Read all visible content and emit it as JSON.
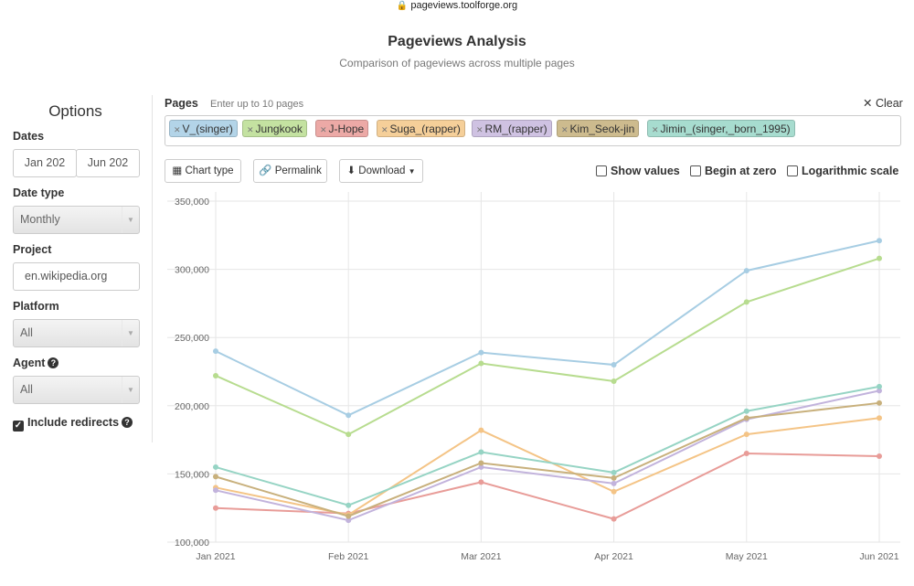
{
  "browser": {
    "url": "pageviews.toolforge.org",
    "lock_icon": "lock-icon"
  },
  "header": {
    "title": "Pageviews Analysis",
    "subtitle": "Comparison of pageviews across multiple pages"
  },
  "sidebar": {
    "title": "Options",
    "dates_label": "Dates",
    "date_start": "Jan 202",
    "date_end": "Jun 202",
    "date_type_label": "Date type",
    "date_type_value": "Monthly",
    "project_label": "Project",
    "project_value": "en.wikipedia.org",
    "platform_label": "Platform",
    "platform_value": "All",
    "agent_label": "Agent",
    "agent_value": "All",
    "redirects_label": "Include redirects",
    "redirects_checked": true
  },
  "pages": {
    "label": "Pages",
    "hint": "Enter up to 10 pages",
    "clear_label": "Clear",
    "tags": [
      {
        "name": "V_(singer)",
        "color": "#b3d4e8"
      },
      {
        "name": "Jungkook",
        "color": "#c4e2a1"
      },
      {
        "name": "J-Hope",
        "color": "#eca9a6"
      },
      {
        "name": "Suga_(rapper)",
        "color": "#f5cf99"
      },
      {
        "name": "RM_(rapper)",
        "color": "#cfc2e2"
      },
      {
        "name": "Kim_Seok-jin",
        "color": "#cdbb8e"
      },
      {
        "name": "Jimin_(singer,_born_1995)",
        "color": "#a7dccf"
      }
    ]
  },
  "toolbar": {
    "chart_type_label": "Chart type",
    "permalink_label": "Permalink",
    "download_label": "Download",
    "show_values_label": "Show values",
    "begin_at_zero_label": "Begin at zero",
    "log_scale_label": "Logarithmic scale"
  },
  "chart_data": {
    "type": "line",
    "categories": [
      "Jan 2021",
      "Feb 2021",
      "Mar 2021",
      "Apr 2021",
      "May 2021",
      "Jun 2021"
    ],
    "ylim": [
      100000,
      350000
    ],
    "yticks": [
      "100,000",
      "150,000",
      "200,000",
      "250,000",
      "300,000",
      "350,000"
    ],
    "grid": true,
    "series": [
      {
        "name": "V_(singer)",
        "color": "#a7cde3",
        "values": [
          240000,
          193000,
          239000,
          230000,
          299000,
          321000
        ]
      },
      {
        "name": "Jungkook",
        "color": "#b7dc8f",
        "values": [
          222000,
          179000,
          231000,
          218000,
          276000,
          308000
        ]
      },
      {
        "name": "J-Hope",
        "color": "#e89c98",
        "values": [
          125000,
          121000,
          144000,
          117000,
          165000,
          163000
        ]
      },
      {
        "name": "Suga_(rapper)",
        "color": "#f4c486",
        "values": [
          140000,
          120000,
          182000,
          137000,
          179000,
          191000
        ]
      },
      {
        "name": "RM_(rapper)",
        "color": "#c2b3dc",
        "values": [
          138000,
          116000,
          155000,
          143000,
          190000,
          211000
        ]
      },
      {
        "name": "Kim_Seok-jin",
        "color": "#c8b07c",
        "values": [
          148000,
          119000,
          158000,
          147000,
          191000,
          202000
        ]
      },
      {
        "name": "Jimin_(singer,_born_1995)",
        "color": "#96d4c4",
        "values": [
          155000,
          127000,
          166000,
          151000,
          196000,
          214000
        ]
      }
    ]
  }
}
